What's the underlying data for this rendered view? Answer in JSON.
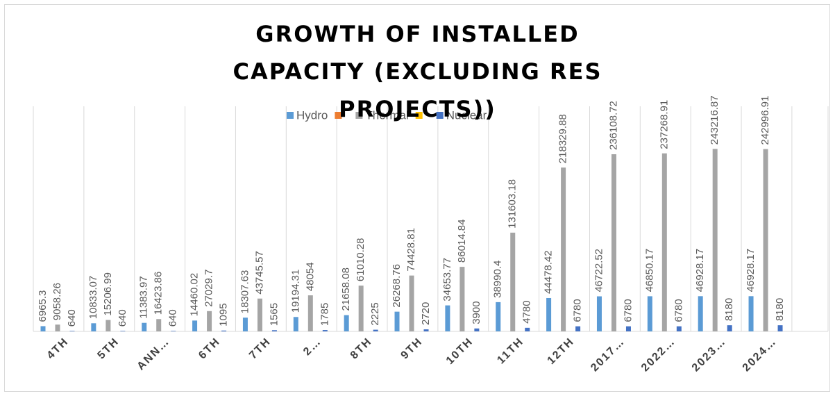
{
  "chart_data": {
    "type": "bar",
    "title": "GROWTH OF INSTALLED CAPACITY (EXCLUDING RES PROJECTS))",
    "categories": [
      "4TH",
      "5TH",
      "ANN…",
      "6TH",
      "7TH",
      "2…",
      "8TH",
      "9TH",
      "10TH",
      "11TH",
      "12TH",
      "2017…",
      "2022…",
      "2023…",
      "2024…"
    ],
    "series": [
      {
        "name": "Hydro",
        "color": "#5b9bd5",
        "values": [
          6965.3,
          10833.07,
          11383.97,
          14460.02,
          18307.63,
          19194.31,
          21658.08,
          26268.76,
          34653.77,
          38990.4,
          44478.42,
          46722.52,
          46850.17,
          46928.17,
          46928.17
        ]
      },
      {
        "color": "#ed7d31",
        "values": [
          null,
          null,
          null,
          null,
          null,
          null,
          null,
          null,
          null,
          null,
          null,
          null,
          null,
          null,
          null
        ]
      },
      {
        "name": "Thermal",
        "color": "#a5a5a5",
        "values": [
          9058.26,
          15206.99,
          16423.86,
          27029.7,
          43745.57,
          48054,
          61010.28,
          74428.81,
          86014.84,
          131603.18,
          218329.88,
          236108.72,
          237268.91,
          243216.87,
          242996.91
        ]
      },
      {
        "color": "#ffc000",
        "values": [
          null,
          null,
          null,
          null,
          null,
          null,
          null,
          null,
          null,
          null,
          null,
          null,
          null,
          null,
          null
        ]
      },
      {
        "name": "Nuclear",
        "color": "#4472c4",
        "values": [
          640,
          640,
          640,
          1095,
          1565,
          1785,
          2225,
          2720,
          3900,
          4780,
          6780,
          6780,
          6780,
          8180,
          8180
        ]
      }
    ],
    "ylim": [
      0,
      300000
    ],
    "data_labels": true,
    "legend": "top"
  }
}
